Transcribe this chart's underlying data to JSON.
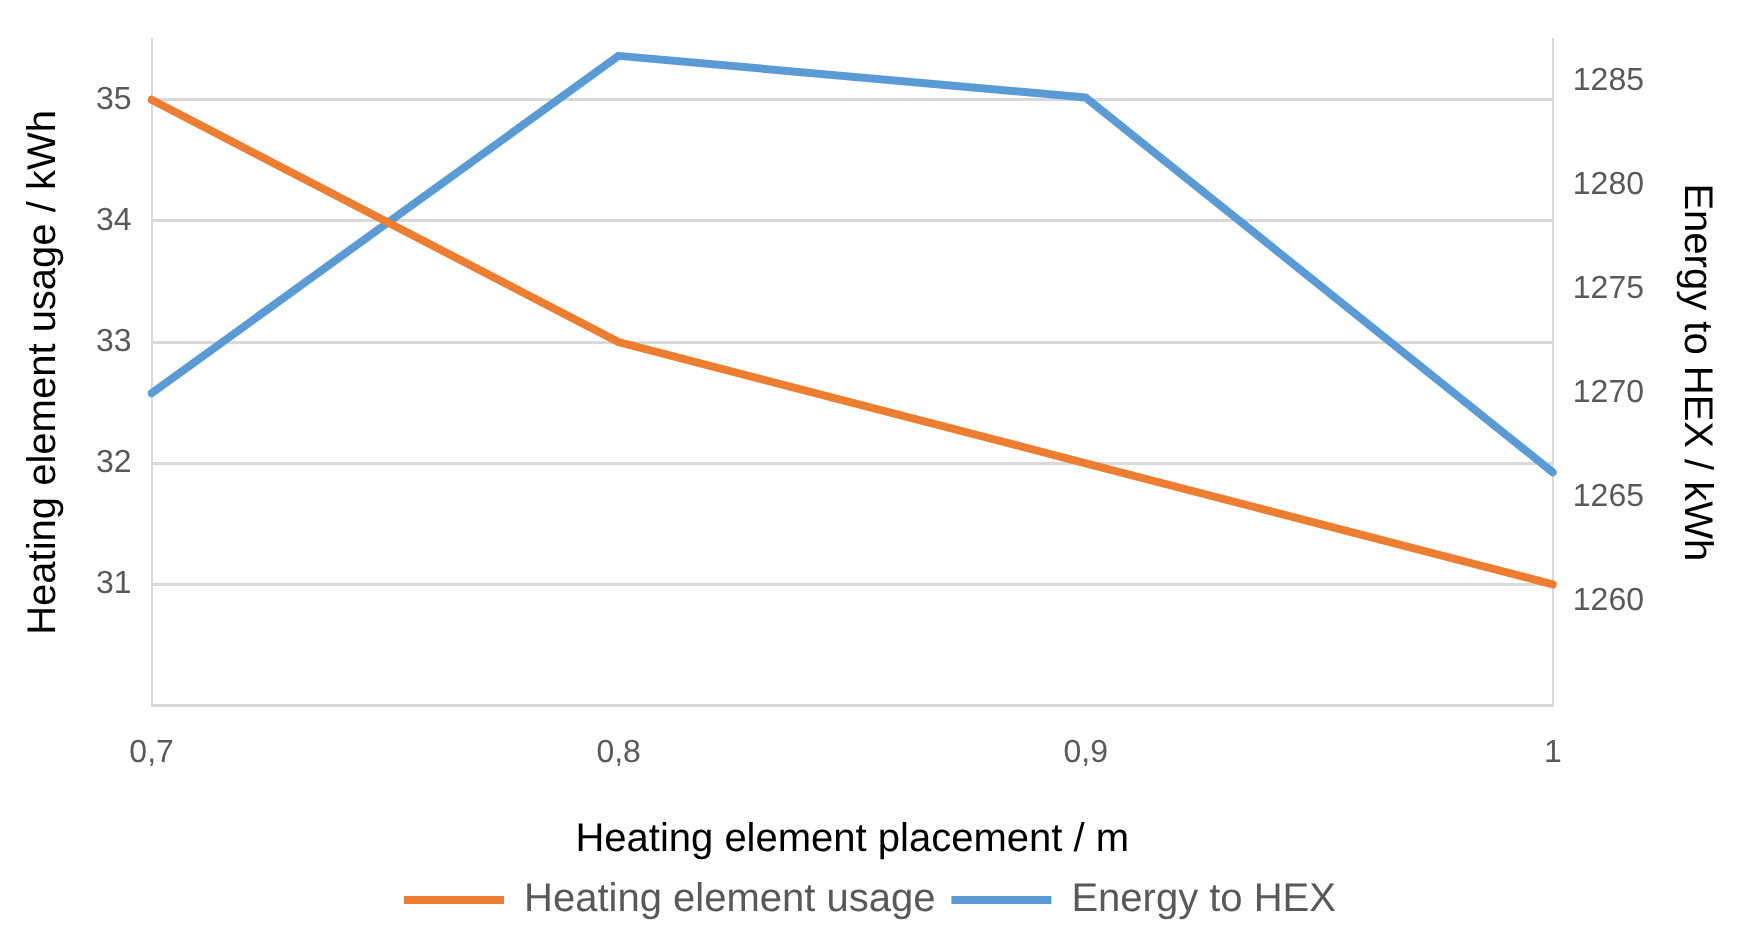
{
  "chart_data": {
    "type": "line",
    "xlabel": "Heating element placement / m",
    "ylabel": "Heating element usage / kWh",
    "y2label": "Energy to HEX / kWh",
    "categories": [
      "0,7",
      "0,8",
      "0,9",
      "1"
    ],
    "series": [
      {
        "name": "Heating element usage",
        "color": "#ed7d31",
        "values": [
          35,
          33,
          32,
          31
        ]
      },
      {
        "name": "Energy to HEX",
        "color": "#5b9bd5",
        "values": [
          1270,
          1286.2,
          1284.2,
          1266.2
        ],
        "axis": "y2"
      }
    ],
    "ylim": [
      30,
      35.5
    ],
    "yticks": [
      {
        "value": 30,
        "label": null
      },
      31,
      32,
      33,
      34,
      35
    ],
    "y2lim": [
      1255,
      1287
    ],
    "y2ticks": [
      1260,
      1265,
      1270,
      1275,
      1280,
      1285
    ],
    "grid": "y",
    "legend": "bottom",
    "marker": "none",
    "line_style": "solid"
  }
}
